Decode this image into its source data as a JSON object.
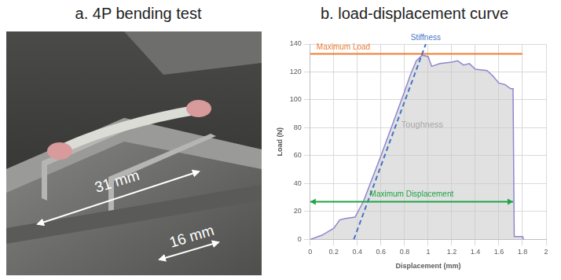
{
  "panel_a": {
    "title": "a. 4P bending test",
    "dimensions": [
      "31 mm",
      "16 mm"
    ]
  },
  "chart_data": {
    "type": "line",
    "title": "b. load-displacement curve",
    "x_label": "Displacement (mm)",
    "y_label": "Load (N)",
    "x": [
      0,
      0.1,
      0.2,
      0.25,
      0.3,
      0.38,
      0.45,
      0.5,
      0.6,
      0.7,
      0.8,
      0.85,
      0.9,
      0.95,
      1.0,
      1.03,
      1.1,
      1.2,
      1.25,
      1.3,
      1.35,
      1.4,
      1.5,
      1.55,
      1.6,
      1.65,
      1.7,
      1.72,
      1.73,
      1.8,
      1.81
    ],
    "values": [
      0,
      3,
      8,
      14,
      15,
      16,
      27,
      38,
      60,
      83,
      106,
      118,
      128,
      132,
      131,
      124,
      126,
      127,
      128,
      125,
      126,
      122,
      121,
      117,
      112,
      111,
      108,
      108,
      2,
      2,
      0
    ],
    "color": "#8f86d0",
    "xlim": [
      0,
      2
    ],
    "xticks": [
      0,
      0.2,
      0.4,
      0.6,
      0.8,
      1,
      1.2,
      1.4,
      1.6,
      1.8,
      2
    ],
    "ylim": [
      0,
      140
    ],
    "yticks": [
      0,
      20,
      40,
      60,
      80,
      100,
      120,
      140
    ],
    "grid": true,
    "annotations": [
      {
        "text": "Maximum Load",
        "color": "#ed7d31",
        "x": [
          0,
          1.8
        ],
        "y": 133
      },
      {
        "text": "Stiffness",
        "color": "#4472c4",
        "line_style": "dashed",
        "x": [
          0.37,
          0.98
        ],
        "y": [
          0,
          140
        ]
      },
      {
        "text": "Maximum Displacement",
        "color": "#21a346",
        "marker": "arrow",
        "x": [
          0,
          1.72
        ],
        "y": 27
      },
      {
        "text": "Toughness",
        "color": "#a6a6a6",
        "x": 0.95,
        "y": 82
      }
    ]
  }
}
